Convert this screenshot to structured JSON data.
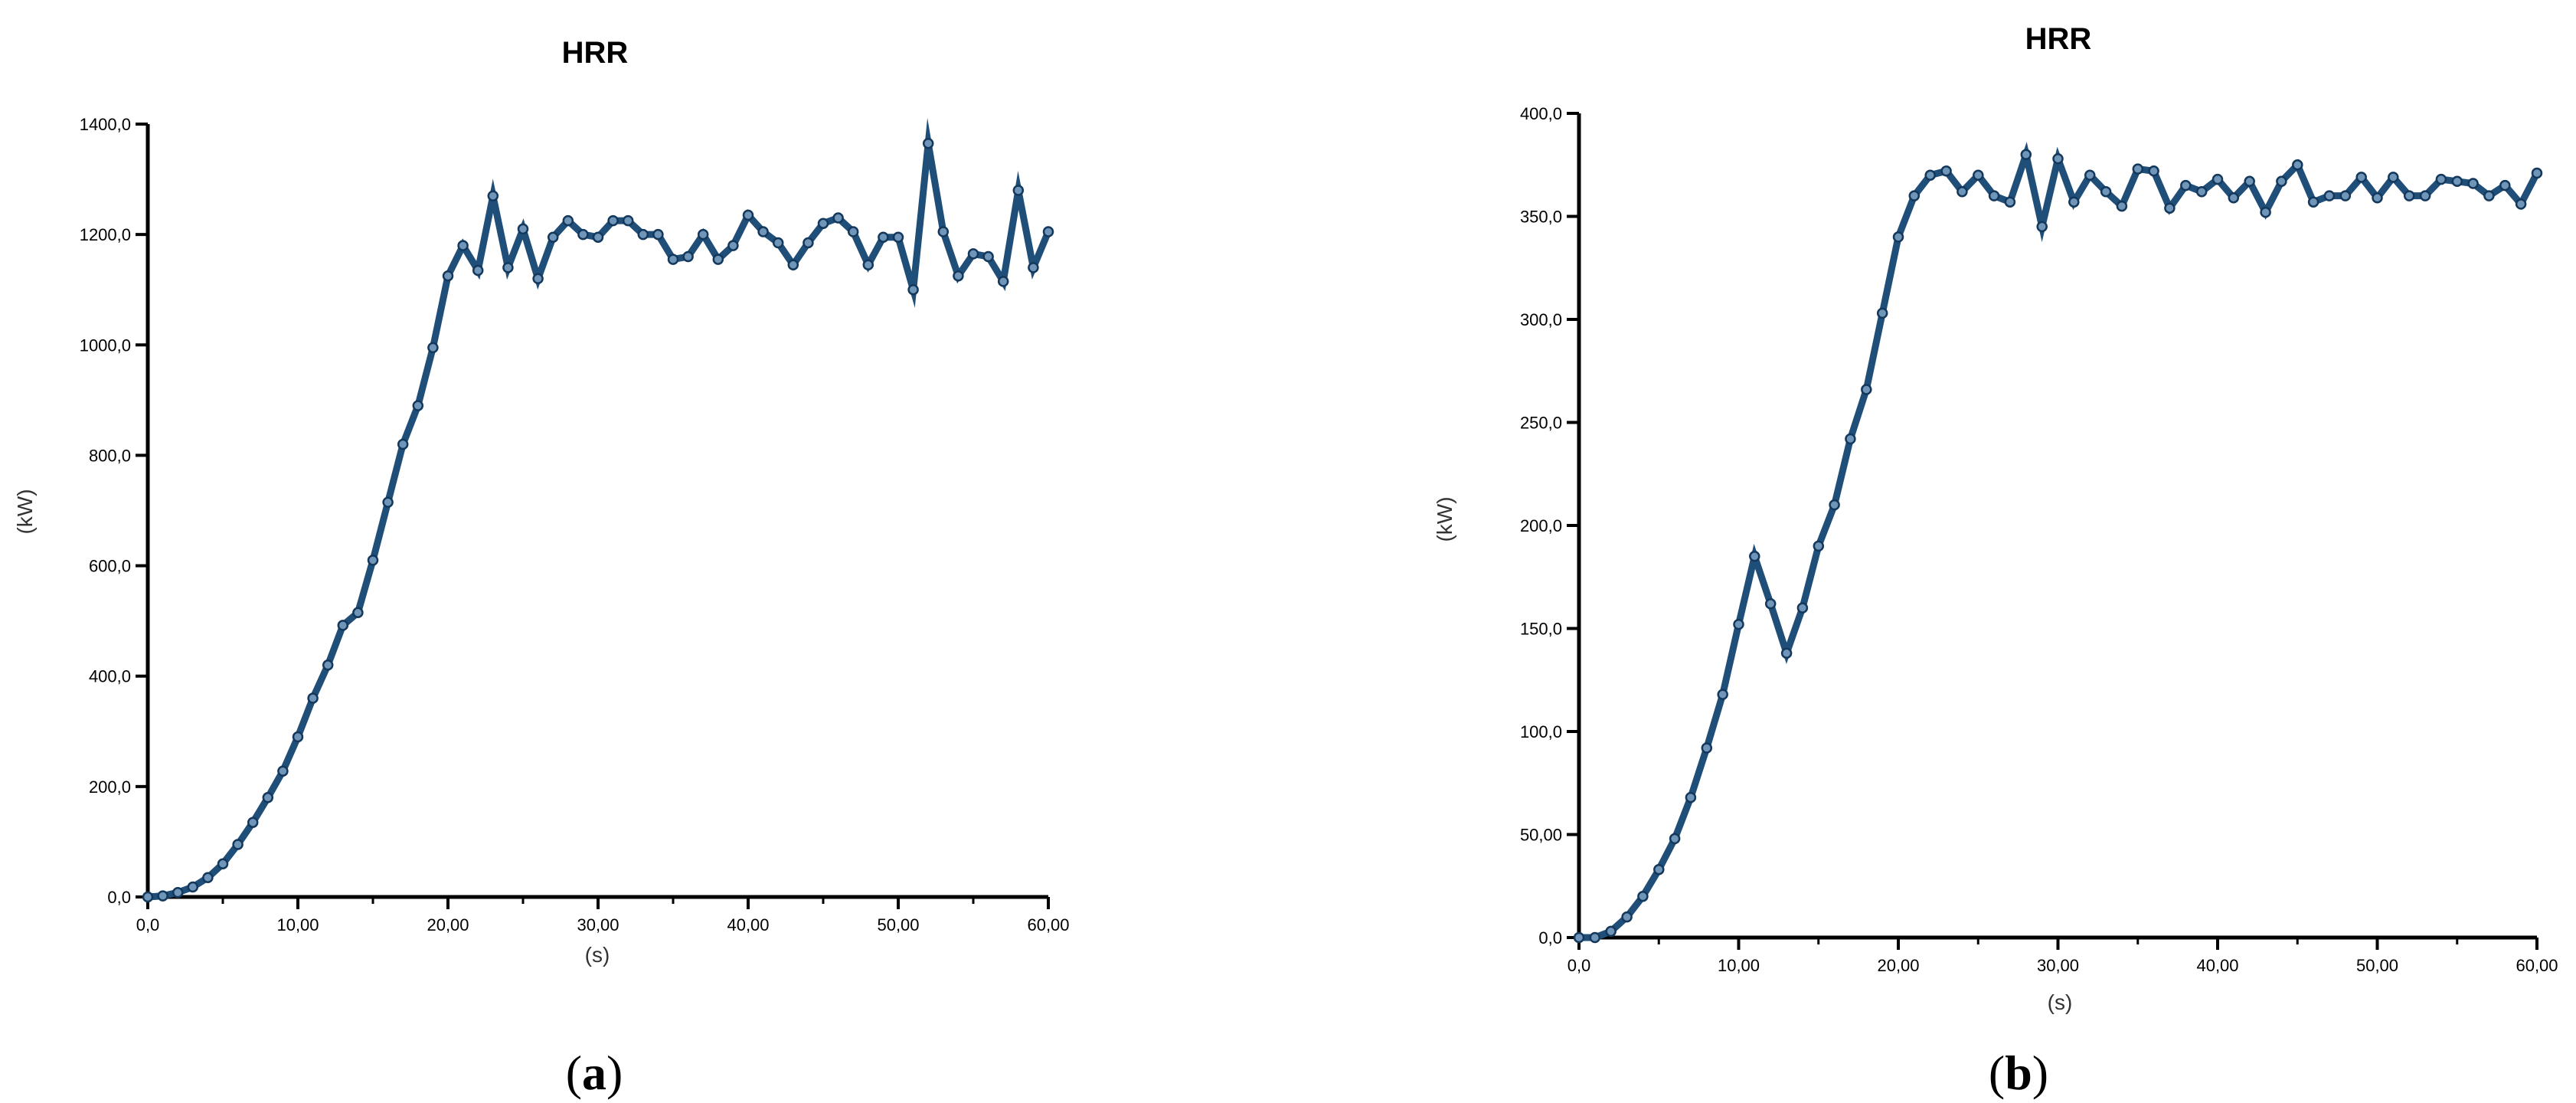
{
  "chart_data": [
    {
      "type": "line",
      "panel": "a",
      "title": "HRR",
      "xlabel": "(s)",
      "ylabel": "(kW)",
      "xlim": [
        0,
        60
      ],
      "ylim": [
        0,
        1400
      ],
      "xticks": [
        "0,0",
        "10,00",
        "20,00",
        "30,00",
        "40,00",
        "50,00",
        "60,00"
      ],
      "yticks": [
        "0,0",
        "200,0",
        "400,0",
        "600,0",
        "800,0",
        "1000,0",
        "1200,0",
        "1400,0"
      ],
      "line_color": "#1f4e79",
      "grid": false,
      "series": [
        {
          "x": [
            0,
            1,
            2,
            3,
            4,
            5,
            6,
            7,
            8,
            9,
            10,
            11,
            12,
            13,
            14,
            15,
            16,
            17,
            18,
            19,
            20,
            21,
            22,
            23,
            24,
            25,
            26,
            27,
            28,
            29,
            30,
            31,
            32,
            33,
            34,
            35,
            36,
            37,
            38,
            39,
            40,
            41,
            42,
            43,
            44,
            45,
            46,
            47,
            48,
            49,
            50,
            51,
            52,
            53,
            54,
            55,
            56,
            57,
            58,
            59,
            60
          ],
          "values": [
            0,
            2,
            8,
            18,
            35,
            60,
            95,
            135,
            180,
            228,
            290,
            360,
            420,
            492,
            515,
            610,
            715,
            820,
            890,
            995,
            1125,
            1180,
            1135,
            1270,
            1140,
            1210,
            1120,
            1195,
            1225,
            1200,
            1195,
            1225,
            1225,
            1200,
            1200,
            1155,
            1160,
            1200,
            1155,
            1180,
            1235,
            1205,
            1185,
            1145,
            1185,
            1220,
            1230,
            1205,
            1145,
            1195,
            1195,
            1100,
            1365,
            1205,
            1125,
            1165,
            1160,
            1115,
            1280,
            1140,
            1205
          ]
        }
      ]
    },
    {
      "type": "line",
      "panel": "b",
      "title": "HRR",
      "xlabel": "(s)",
      "ylabel": "(kW)",
      "xlim": [
        0,
        60
      ],
      "ylim": [
        0,
        400
      ],
      "xticks": [
        "0,0",
        "10,00",
        "20,00",
        "30,00",
        "40,00",
        "50,00",
        "60,00"
      ],
      "yticks": [
        "0,0",
        "50,00",
        "100,0",
        "150,0",
        "200,0",
        "250,0",
        "300,0",
        "350,0",
        "400,0"
      ],
      "line_color": "#1f4e79",
      "grid": false,
      "series": [
        {
          "x": [
            0,
            1,
            2,
            3,
            4,
            5,
            6,
            7,
            8,
            9,
            10,
            11,
            12,
            13,
            14,
            15,
            16,
            17,
            18,
            19,
            20,
            21,
            22,
            23,
            24,
            25,
            26,
            27,
            28,
            29,
            30,
            31,
            32,
            33,
            34,
            35,
            36,
            37,
            38,
            39,
            40,
            41,
            42,
            43,
            44,
            45,
            46,
            47,
            48,
            49,
            50,
            51,
            52,
            53,
            54,
            55,
            56,
            57,
            58,
            59,
            60
          ],
          "values": [
            0,
            0,
            3,
            10,
            20,
            33,
            48,
            68,
            92,
            118,
            152,
            185,
            162,
            138,
            160,
            190,
            210,
            242,
            266,
            303,
            340,
            360,
            370,
            372,
            362,
            370,
            360,
            357,
            380,
            345,
            378,
            357,
            370,
            362,
            355,
            373,
            372,
            354,
            365,
            362,
            368,
            359,
            367,
            352,
            367,
            375,
            357,
            360,
            360,
            369,
            359,
            369,
            360,
            360,
            368,
            367,
            366,
            360,
            365,
            356,
            371
          ]
        }
      ]
    }
  ],
  "panel_labels": {
    "a": {
      "open": "(",
      "letter": "a",
      "close": ")"
    },
    "b": {
      "open": "(",
      "letter": "b",
      "close": ")"
    }
  }
}
